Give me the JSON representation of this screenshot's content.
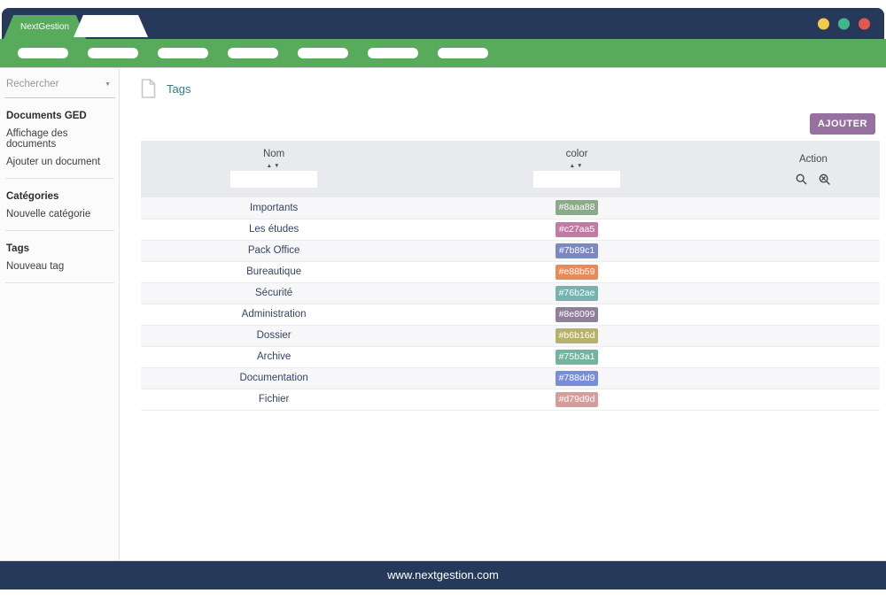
{
  "colors": {
    "navy": "#27395b",
    "green": "#57ab5b",
    "purple": "#96719f",
    "teal": "#317a8c",
    "control_minimize": "#f2c94c",
    "control_maximize": "#43b58c",
    "control_close": "#e0584e"
  },
  "window": {
    "tab_title": "NextGestion",
    "controls": [
      {
        "name": "minimize",
        "color": "#f2c94c"
      },
      {
        "name": "maximize",
        "color": "#43b58c"
      },
      {
        "name": "close",
        "color": "#e0584e"
      }
    ]
  },
  "navbar": {
    "pill_count": 7
  },
  "sidebar": {
    "search": {
      "placeholder": "Rechercher",
      "caret": "▼"
    },
    "sections": [
      {
        "title": "Documents GED",
        "items": [
          "Affichage des documents",
          "Ajouter un document"
        ]
      },
      {
        "title": "Catégories",
        "items": [
          "Nouvelle catégorie"
        ]
      },
      {
        "title": "Tags",
        "items": [
          "Nouveau tag"
        ]
      }
    ]
  },
  "main": {
    "page_title": "Tags",
    "add_button": "AJOUTER",
    "table": {
      "columns": [
        {
          "label": "Nom",
          "sortable": true,
          "filter_value": ""
        },
        {
          "label": "color",
          "sortable": true,
          "filter_value": ""
        },
        {
          "label": "Action",
          "sortable": false
        }
      ],
      "sort_icons": {
        "asc": "▲",
        "desc": "▼"
      },
      "rows": [
        {
          "name": "Importants",
          "color": "#8aaa88"
        },
        {
          "name": "Les études",
          "color": "#c27aa5"
        },
        {
          "name": "Pack Office",
          "color": "#7b89c1"
        },
        {
          "name": "Bureautique",
          "color": "#e88b59"
        },
        {
          "name": "Sécurité",
          "color": "#76b2ae"
        },
        {
          "name": "Administration",
          "color": "#8e8099"
        },
        {
          "name": "Dossier",
          "color": "#b6b16d"
        },
        {
          "name": "Archive",
          "color": "#75b3a1"
        },
        {
          "name": "Documentation",
          "color": "#788dd9"
        },
        {
          "name": "Fichier",
          "color": "#d79d9d"
        }
      ]
    }
  },
  "footer": {
    "url": "www.nextgestion.com"
  }
}
